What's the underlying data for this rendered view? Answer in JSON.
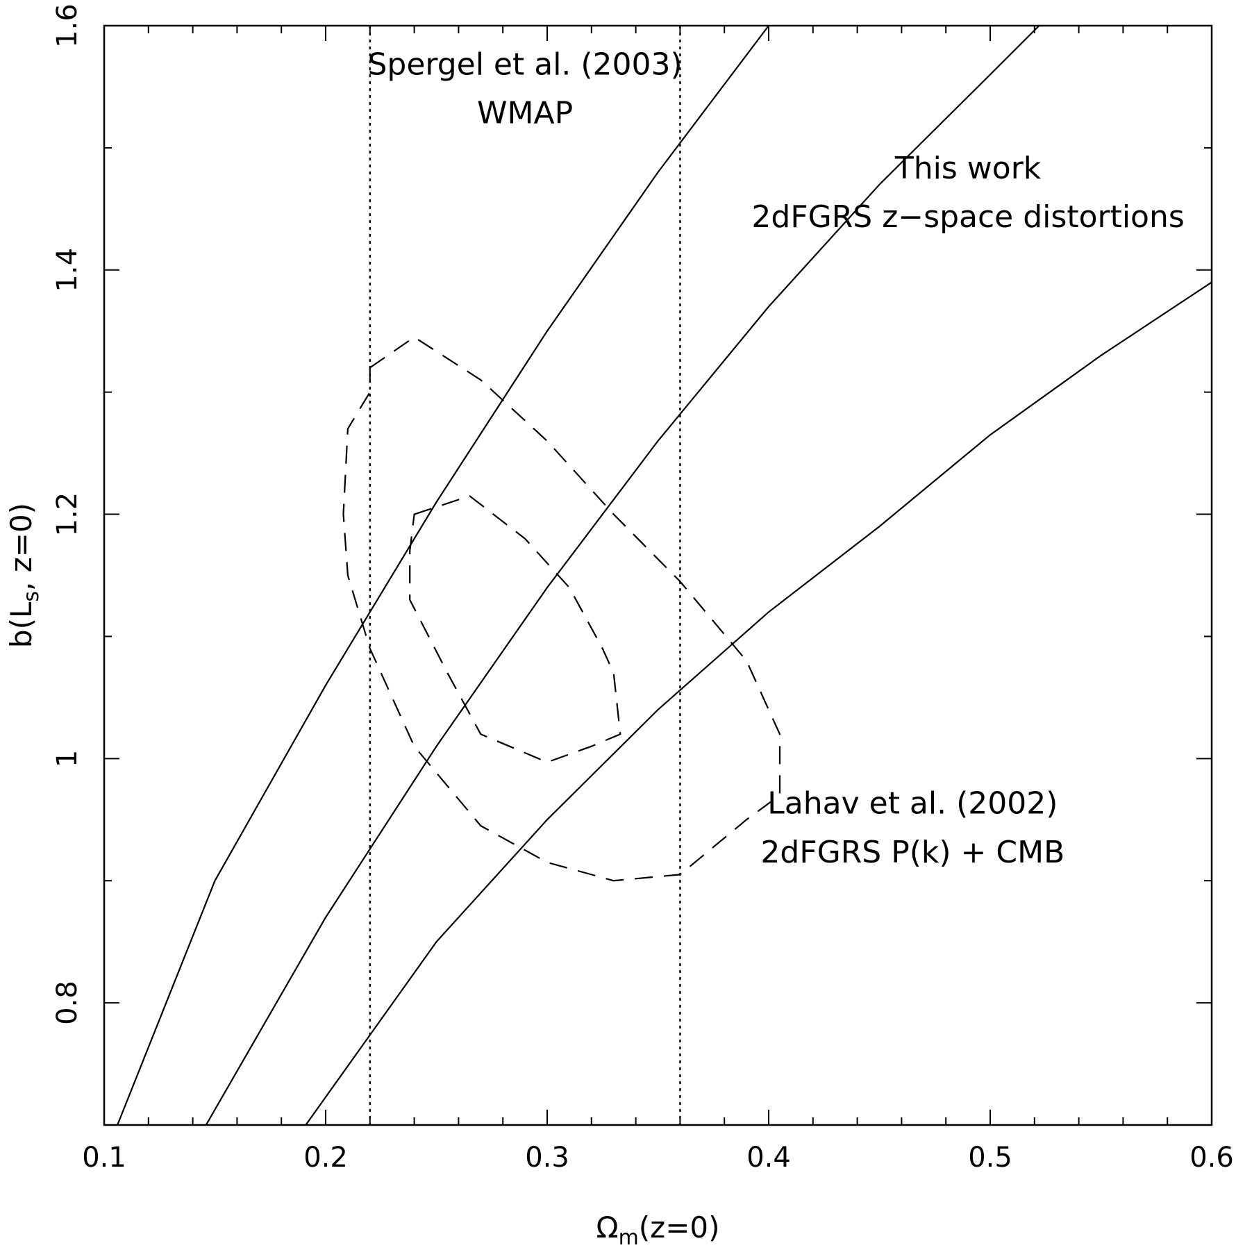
{
  "chart_data": {
    "type": "line",
    "xlabel": {
      "main": "Ω",
      "sub": "m",
      "rest": "(z=0)"
    },
    "ylabel": {
      "main": "b(L",
      "sub": "s",
      "rest": ", z=0)"
    },
    "xlim": [
      0.1,
      0.6
    ],
    "ylim": [
      0.7,
      1.6
    ],
    "x_ticks": [
      0.1,
      0.2,
      0.3,
      0.4,
      0.5,
      0.6
    ],
    "x_tick_labels": [
      "0.1",
      "0.2",
      "0.3",
      "0.4",
      "0.5",
      "0.6"
    ],
    "y_ticks": [
      0.8,
      1.0,
      1.2,
      1.4,
      1.6
    ],
    "y_tick_labels": [
      "0.8",
      "1",
      "1.2",
      "1.4",
      "1.6"
    ],
    "x_minor_step": 0.02,
    "y_minor_step": 0.1,
    "grid": false,
    "series": [
      {
        "style": "solid",
        "points": [
          [
            0.106,
            0.7
          ],
          [
            0.15,
            0.9
          ],
          [
            0.2,
            1.06
          ],
          [
            0.25,
            1.21
          ],
          [
            0.3,
            1.35
          ],
          [
            0.35,
            1.48
          ],
          [
            0.4,
            1.6
          ],
          [
            0.419,
            1.645
          ]
        ]
      },
      {
        "style": "solid",
        "points": [
          [
            0.146,
            0.7
          ],
          [
            0.2,
            0.87
          ],
          [
            0.25,
            1.01
          ],
          [
            0.3,
            1.14
          ],
          [
            0.35,
            1.26
          ],
          [
            0.4,
            1.37
          ],
          [
            0.45,
            1.47
          ],
          [
            0.5,
            1.56
          ],
          [
            0.58,
            1.705
          ]
        ]
      },
      {
        "style": "solid",
        "points": [
          [
            0.191,
            0.7
          ],
          [
            0.25,
            0.85
          ],
          [
            0.3,
            0.95
          ],
          [
            0.35,
            1.04
          ],
          [
            0.4,
            1.12
          ],
          [
            0.45,
            1.19
          ],
          [
            0.5,
            1.265
          ],
          [
            0.55,
            1.33
          ],
          [
            0.6,
            1.39
          ]
        ]
      },
      {
        "style": "dotted",
        "points": [
          [
            0.22,
            0.7
          ],
          [
            0.22,
            1.6
          ]
        ]
      },
      {
        "style": "dotted",
        "points": [
          [
            0.36,
            0.7
          ],
          [
            0.36,
            1.6
          ]
        ]
      },
      {
        "style": "dashed",
        "closed": true,
        "points": [
          [
            0.22,
            1.32
          ],
          [
            0.24,
            1.345
          ],
          [
            0.27,
            1.31
          ],
          [
            0.3,
            1.26
          ],
          [
            0.33,
            1.2
          ],
          [
            0.36,
            1.145
          ],
          [
            0.39,
            1.08
          ],
          [
            0.405,
            1.02
          ],
          [
            0.405,
            0.97
          ],
          [
            0.39,
            0.95
          ],
          [
            0.36,
            0.905
          ],
          [
            0.33,
            0.9
          ],
          [
            0.3,
            0.915
          ],
          [
            0.27,
            0.945
          ],
          [
            0.24,
            1.01
          ],
          [
            0.22,
            1.09
          ],
          [
            0.21,
            1.15
          ],
          [
            0.208,
            1.2
          ],
          [
            0.21,
            1.27
          ],
          [
            0.22,
            1.3
          ]
        ]
      },
      {
        "style": "dashed",
        "closed": true,
        "points": [
          [
            0.24,
            1.2
          ],
          [
            0.265,
            1.215
          ],
          [
            0.29,
            1.18
          ],
          [
            0.31,
            1.14
          ],
          [
            0.325,
            1.09
          ],
          [
            0.33,
            1.07
          ],
          [
            0.333,
            1.02
          ],
          [
            0.32,
            1.01
          ],
          [
            0.3,
            0.997
          ],
          [
            0.27,
            1.02
          ],
          [
            0.255,
            1.07
          ],
          [
            0.238,
            1.13
          ],
          [
            0.238,
            1.17
          ]
        ]
      }
    ],
    "annotations": [
      {
        "lines": [
          "Spergel et al. (2003)",
          "WMAP"
        ],
        "x": 0.29,
        "y": [
          1.56,
          1.52
        ],
        "anchor": "middle"
      },
      {
        "lines": [
          "This work",
          "2dFGRS z−space distortions"
        ],
        "x": 0.49,
        "y": [
          1.475,
          1.435
        ],
        "anchor": "middle"
      },
      {
        "lines": [
          "Lahav et al. (2002)",
          "2dFGRS P(k) + CMB"
        ],
        "x": 0.465,
        "y": [
          0.955,
          0.915
        ],
        "anchor": "middle"
      }
    ]
  }
}
